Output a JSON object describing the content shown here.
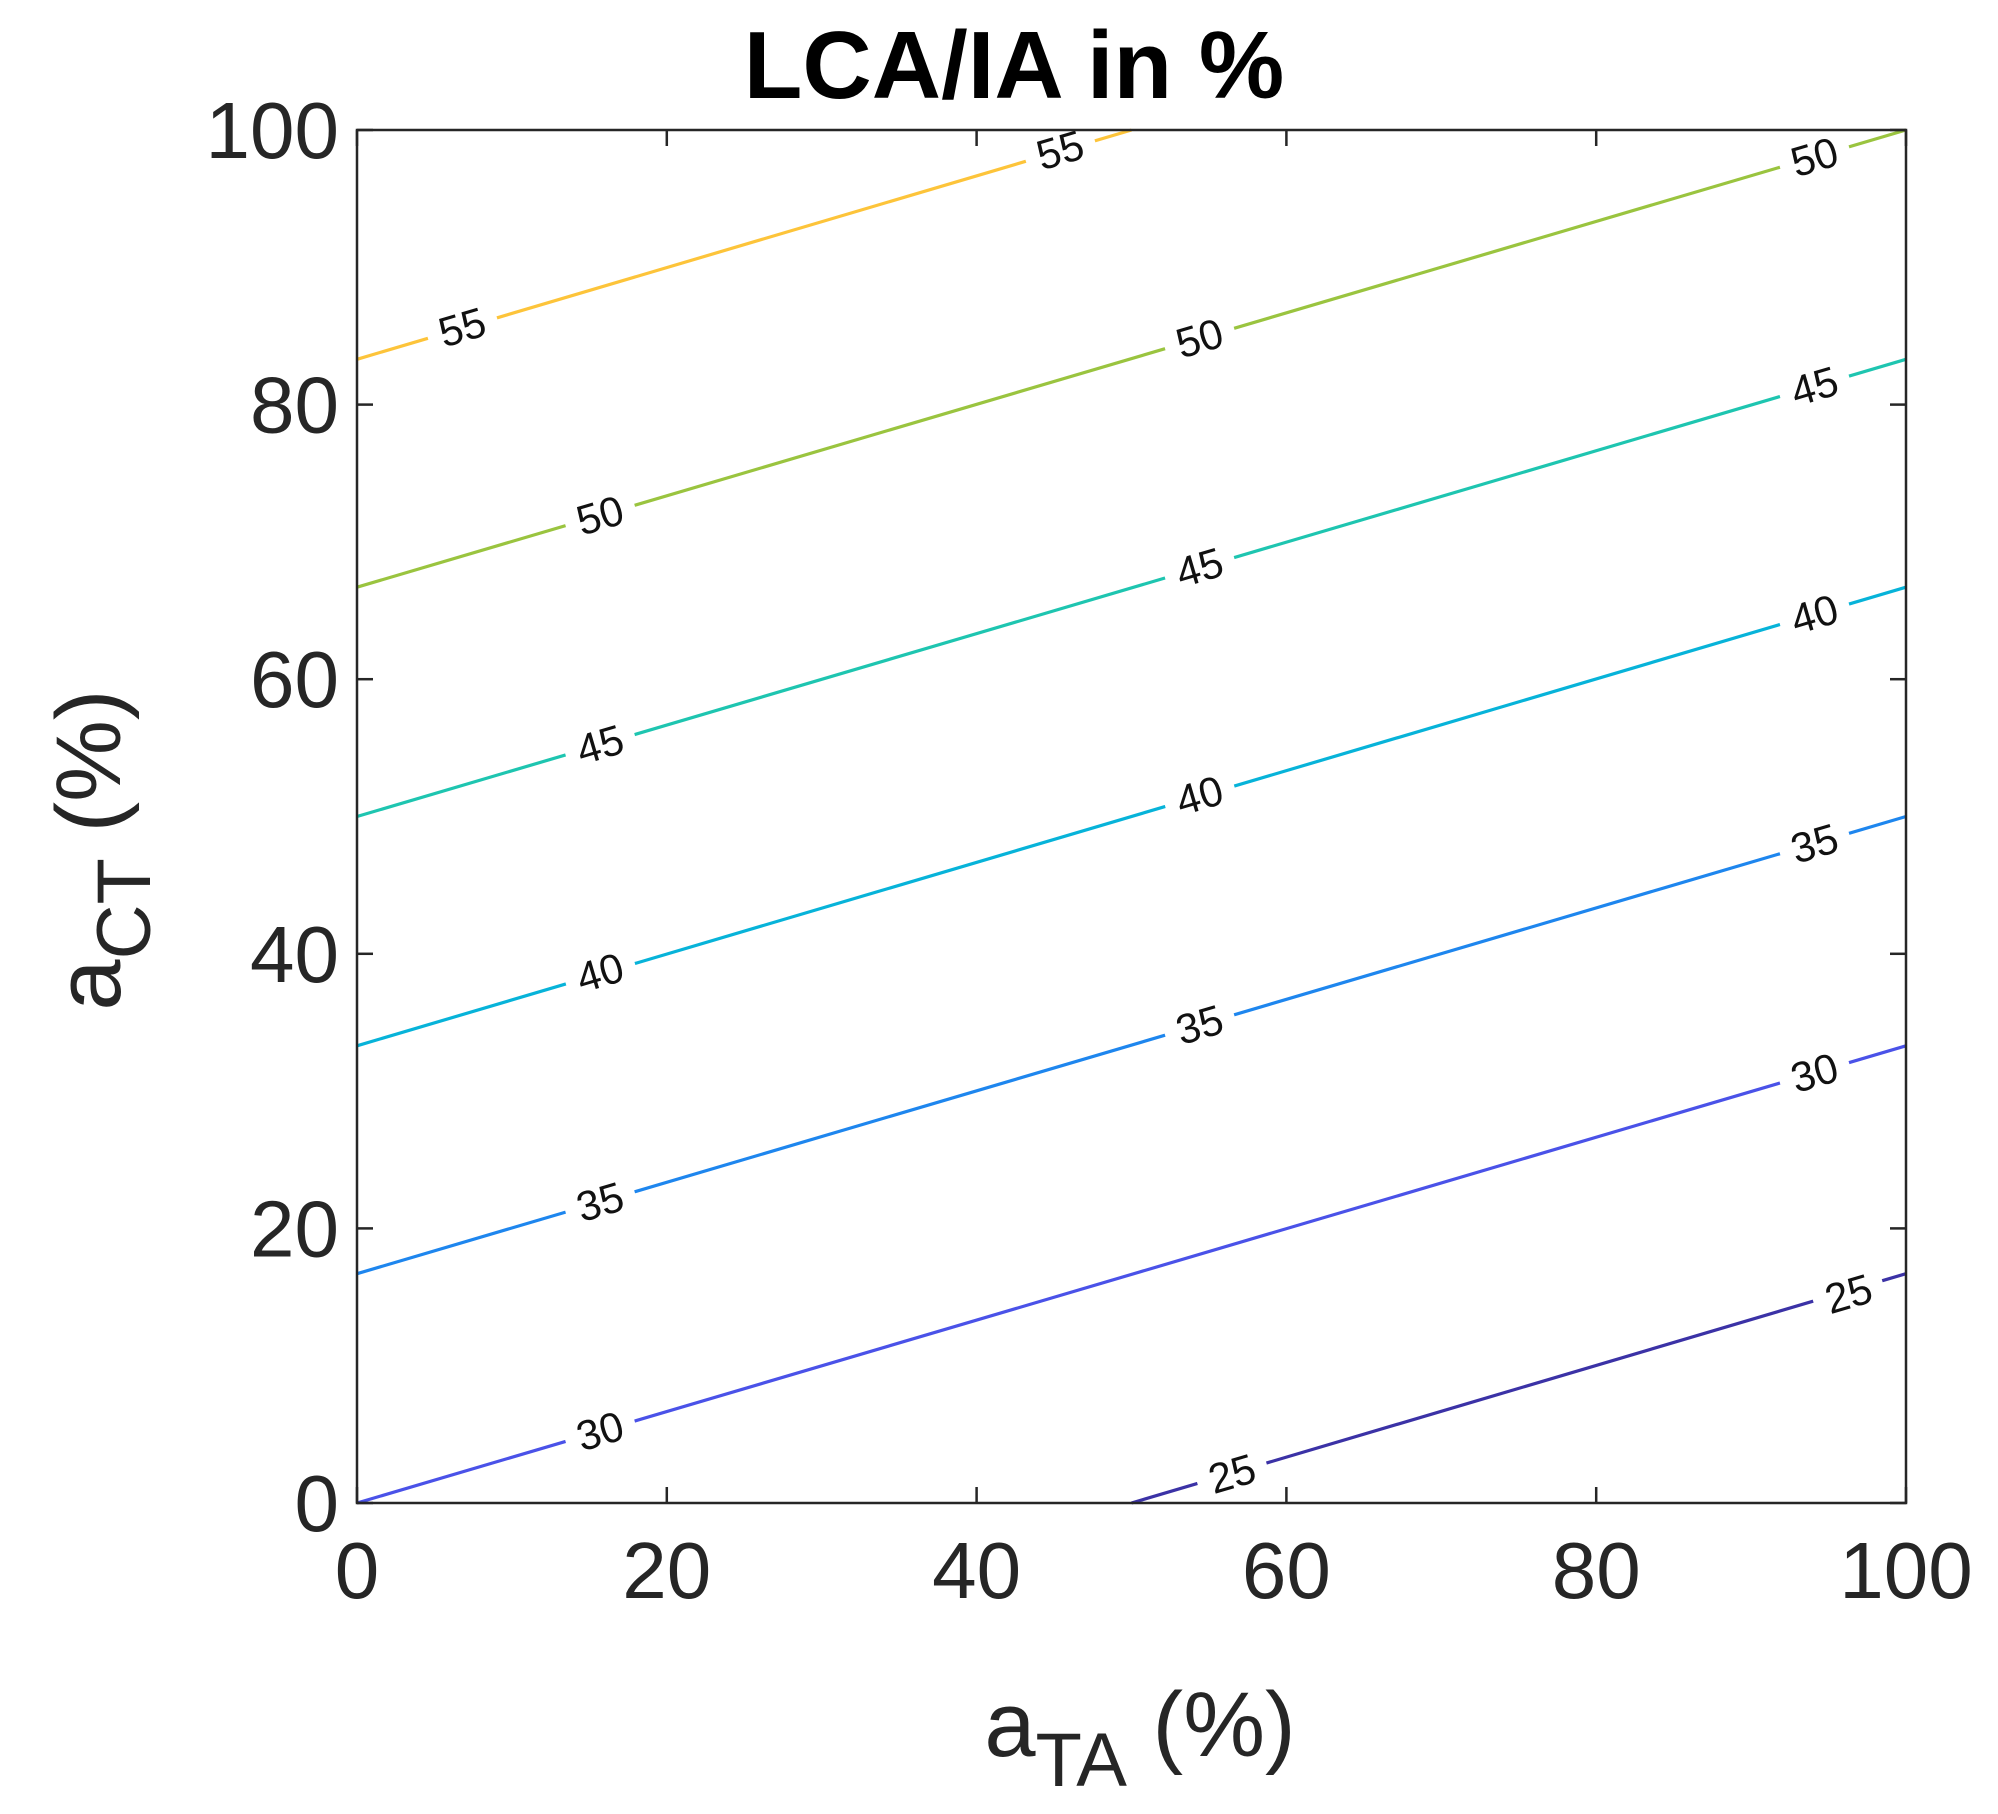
{
  "chart_data": {
    "type": "contour",
    "title": "LCA/IA in %",
    "xlabel": {
      "base": "a",
      "subscript": "TA",
      "suffix": " (%)"
    },
    "ylabel": {
      "base": "a",
      "subscript": "CT",
      "suffix": " (%)"
    },
    "xlim": [
      0,
      100
    ],
    "ylim": [
      0,
      100
    ],
    "xticks": [
      0,
      20,
      40,
      60,
      80,
      100
    ],
    "yticks": [
      0,
      20,
      40,
      60,
      80,
      100
    ],
    "grid": false,
    "levels": [
      {
        "level": "25",
        "color": "#3b32a6",
        "points": [
          [
            50,
            0
          ],
          [
            100,
            16.7
          ]
        ],
        "labels": [
          [
            56.5,
            2.1
          ],
          [
            96.3,
            15.2
          ]
        ]
      },
      {
        "level": "30",
        "color": "#4a52e8",
        "points": [
          [
            0,
            0
          ],
          [
            100,
            33.3
          ]
        ],
        "labels": [
          [
            15.7,
            5.2
          ],
          [
            94.1,
            31.3
          ]
        ]
      },
      {
        "level": "35",
        "color": "#1e86ee",
        "points": [
          [
            0,
            16.7
          ],
          [
            100,
            50
          ]
        ],
        "labels": [
          [
            15.7,
            21.9
          ],
          [
            54.4,
            34.8
          ],
          [
            94.1,
            48
          ]
        ]
      },
      {
        "level": "40",
        "color": "#07b3d9",
        "points": [
          [
            0,
            33.3
          ],
          [
            100,
            66.7
          ]
        ],
        "labels": [
          [
            15.7,
            38.6
          ],
          [
            54.4,
            51.5
          ],
          [
            94.1,
            64.7
          ]
        ]
      },
      {
        "level": "45",
        "color": "#1ec5b0",
        "points": [
          [
            0,
            50
          ],
          [
            100,
            83.3
          ]
        ],
        "labels": [
          [
            15.7,
            55.2
          ],
          [
            54.4,
            68.1
          ],
          [
            94.1,
            81.3
          ]
        ]
      },
      {
        "level": "50",
        "color": "#9ac43f",
        "points": [
          [
            0,
            66.7
          ],
          [
            100,
            100
          ]
        ],
        "labels": [
          [
            15.7,
            71.9
          ],
          [
            54.4,
            84.8
          ],
          [
            94.1,
            98
          ]
        ]
      },
      {
        "level": "55",
        "color": "#fdc43a",
        "points": [
          [
            0,
            83.3
          ],
          [
            50,
            100
          ]
        ],
        "labels": [
          [
            6.8,
            85.6
          ],
          [
            45.4,
            98.5
          ]
        ]
      }
    ]
  }
}
